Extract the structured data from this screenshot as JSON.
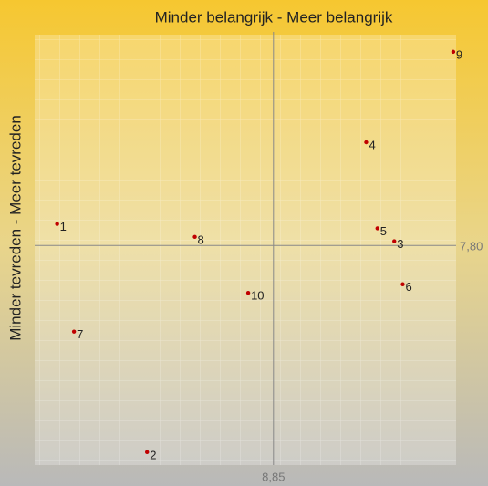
{
  "chart_data": {
    "type": "scatter",
    "xlabel": "Minder belangrijk  -  Meer belangrijk",
    "ylabel": "Minder tevreden  -  Meer tevreden",
    "x": [
      8.08,
      8.4,
      9.28,
      9.18,
      9.22,
      9.31,
      8.14,
      8.57,
      9.49,
      8.76
    ],
    "y": [
      7.85,
      7.32,
      7.81,
      8.04,
      7.84,
      7.71,
      7.6,
      7.82,
      8.25,
      7.69
    ],
    "labels": [
      "1",
      "2",
      "3",
      "4",
      "5",
      "6",
      "7",
      "8",
      "9",
      "10"
    ],
    "color": "#c00000",
    "xlim": [
      8.0,
      9.5
    ],
    "ylim": [
      7.29,
      8.29
    ],
    "xticks": [
      {
        "value": 8.85,
        "label": "8,85"
      }
    ],
    "yticks": [
      {
        "value": 7.8,
        "label": "7,80"
      }
    ]
  }
}
